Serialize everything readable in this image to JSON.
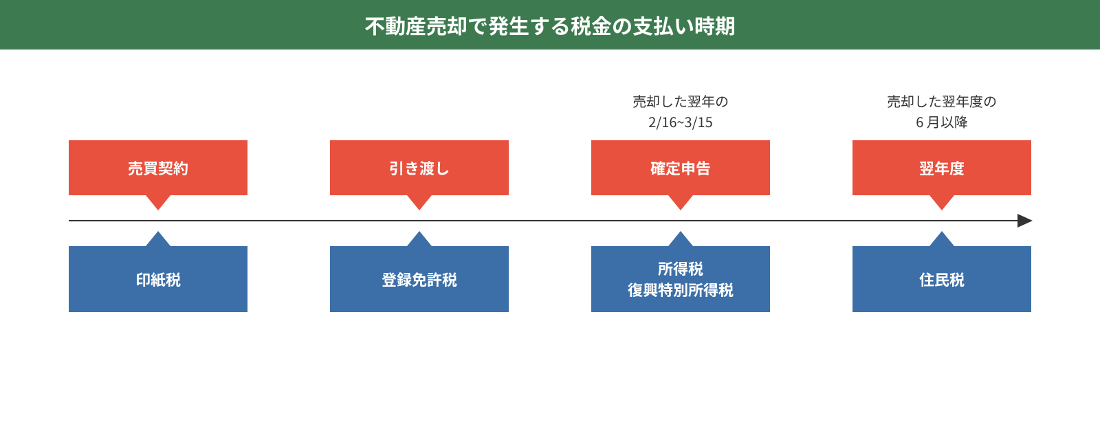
{
  "title": {
    "text": "不動産売却で発生する税金の支払い時期",
    "background_color": "#3d7a4f",
    "text_color": "#ffffff",
    "font_size": 30
  },
  "colors": {
    "top_box": "#e7513e",
    "bottom_box": "#3c6fa8",
    "box_text": "#ffffff",
    "arrow": "#333333",
    "annotation_text": "#333333",
    "background": "#ffffff"
  },
  "box_font_size": 22,
  "annotation_font_size": 20,
  "timeline": {
    "items": [
      {
        "annotation": "",
        "top_label": "売買契約",
        "bottom_label": "印紙税"
      },
      {
        "annotation": "",
        "top_label": "引き渡し",
        "bottom_label": "登録免許税"
      },
      {
        "annotation": "売却した翌年の\n2/16~3/15",
        "top_label": "確定申告",
        "bottom_label": "所得税\n復興特別所得税"
      },
      {
        "annotation": "売却した翌年度の\n6 月以降",
        "top_label": "翌年度",
        "bottom_label": "住民税"
      }
    ]
  }
}
